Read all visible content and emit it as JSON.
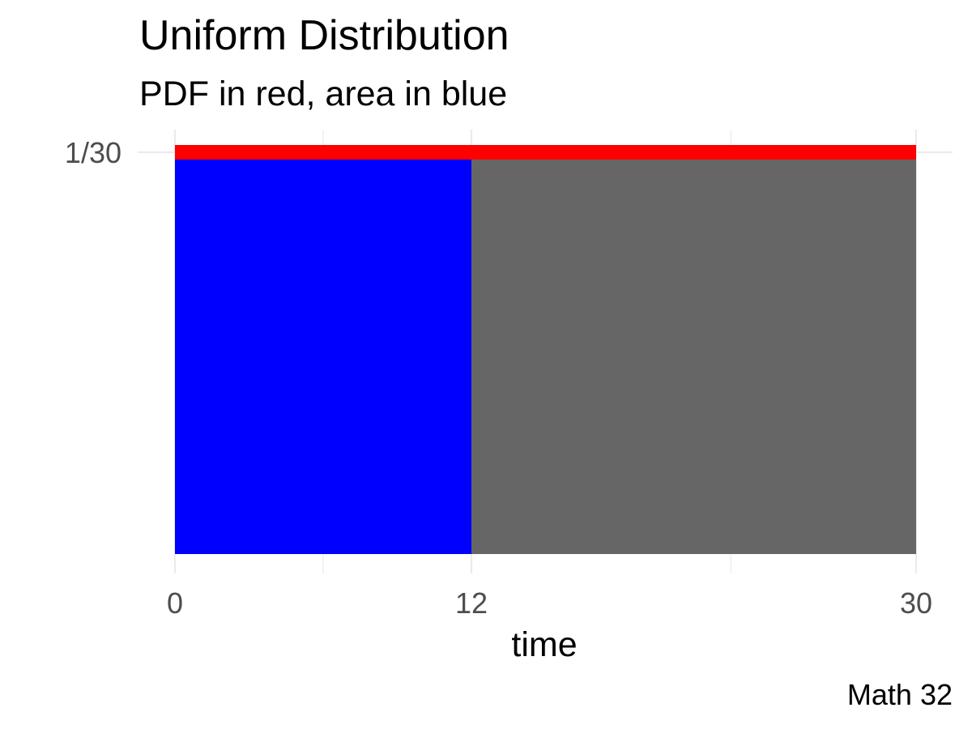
{
  "chart_data": {
    "type": "area",
    "title": "Uniform Distribution",
    "subtitle": "PDF in red, area in blue",
    "caption": "Math 32",
    "xlabel": "time",
    "ylabel": "",
    "xlim": [
      0,
      30
    ],
    "ylim": [
      0,
      0.0333333
    ],
    "x_ticks": [
      {
        "value": 0,
        "label": "0"
      },
      {
        "value": 12,
        "label": "12"
      },
      {
        "value": 30,
        "label": "30"
      }
    ],
    "x_minor_gridlines": [
      6,
      22.5
    ],
    "y_ticks": [
      {
        "value": 0.0333333,
        "label": "1/30"
      }
    ],
    "grid": true,
    "series": [
      {
        "role": "total-area",
        "x": [
          0,
          30
        ],
        "y": [
          0.0333333,
          0.0333333
        ],
        "color": "#666666"
      },
      {
        "role": "shaded-area",
        "x": [
          0,
          12
        ],
        "y": [
          0.0333333,
          0.0333333
        ],
        "color": "#0000ff"
      },
      {
        "role": "pdf-line",
        "x": [
          0,
          30
        ],
        "y": [
          0.0333333,
          0.0333333
        ],
        "color": "#ff0000"
      }
    ],
    "colors": {
      "grid": "#ebebeb",
      "tick_text": "#4d4d4d"
    }
  }
}
